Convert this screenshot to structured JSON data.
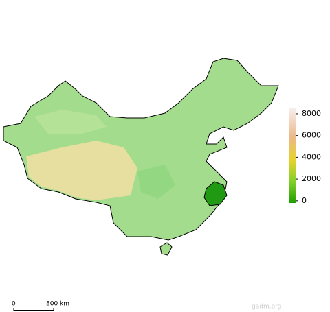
{
  "legend": {
    "ticks": [
      0,
      2000,
      4000,
      6000,
      8000
    ],
    "lim": [
      -200,
      8500
    ]
  },
  "scale_bar": {
    "start_label": "0",
    "end_label": "800 km"
  },
  "source": "gadm.org"
}
